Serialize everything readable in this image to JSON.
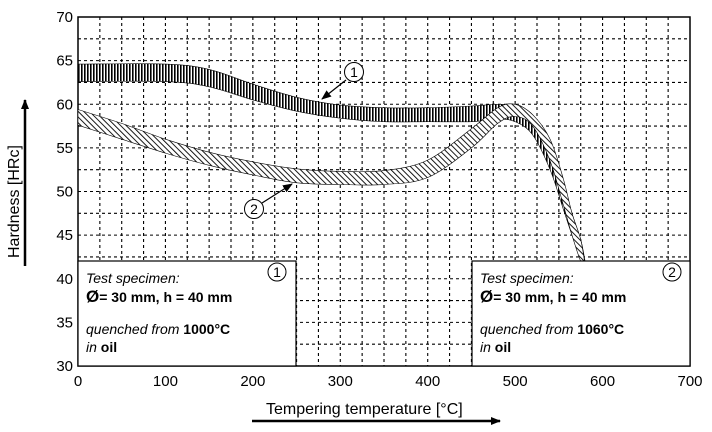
{
  "chart_data": {
    "type": "line",
    "xlabel": "Tempering temperature [°C]",
    "ylabel": "Hardness [HRc]",
    "xlim": [
      0,
      700
    ],
    "ylim": [
      30,
      70
    ],
    "x_ticks": [
      "0",
      "100",
      "200",
      "300",
      "400",
      "500",
      "600",
      "700"
    ],
    "y_ticks": [
      "30",
      "35",
      "40",
      "45",
      "50",
      "55",
      "60",
      "65",
      "70"
    ],
    "grid": true,
    "series": [
      {
        "name": "1",
        "x": [
          0,
          100,
          150,
          200,
          250,
          300,
          350,
          400,
          450,
          480,
          500,
          520,
          540,
          555,
          565,
          575,
          580
        ],
        "low": [
          62.6,
          62.6,
          62.0,
          60.5,
          59.2,
          58.4,
          58.0,
          58.0,
          58.0,
          58.3,
          58.0,
          56.5,
          52.5,
          48.0,
          45.0,
          42.5,
          42.0
        ],
        "high": [
          64.6,
          64.6,
          64.0,
          62.3,
          60.8,
          59.9,
          59.6,
          59.6,
          59.8,
          60.0,
          59.8,
          58.8,
          55.5,
          51.0,
          47.5,
          44.5,
          42.0
        ]
      },
      {
        "name": "2",
        "x": [
          0,
          50,
          100,
          150,
          200,
          250,
          300,
          350,
          400,
          450,
          480,
          500,
          520,
          540,
          555,
          565,
          575,
          580
        ],
        "low": [
          57.6,
          56.0,
          54.4,
          53.0,
          51.9,
          51.0,
          50.8,
          50.8,
          51.6,
          55.0,
          57.8,
          58.6,
          57.5,
          53.5,
          48.5,
          45.0,
          42.0,
          41.5
        ],
        "high": [
          59.4,
          57.8,
          56.0,
          54.5,
          53.4,
          52.6,
          52.3,
          52.4,
          53.6,
          57.2,
          59.6,
          60.0,
          58.8,
          56.0,
          51.5,
          47.5,
          44.5,
          41.5
        ]
      }
    ]
  },
  "callouts": [
    "1",
    "2"
  ],
  "left_box": {
    "heading": "Test specimen:",
    "diameter_symbol": "Ø",
    "dimensions": "= 30 mm, h = 40 mm",
    "quenched_prefix": "quenched from ",
    "quenched_temp": "1000°C",
    "medium_prefix": "in ",
    "medium": "oil",
    "badge": "1"
  },
  "right_box": {
    "heading": "Test specimen:",
    "diameter_symbol": "Ø",
    "dimensions": "= 30 mm, h = 40 mm",
    "quenched_prefix": "quenched from ",
    "quenched_temp": "1060°C",
    "medium_prefix": "in ",
    "medium": "oil",
    "badge": "2"
  }
}
